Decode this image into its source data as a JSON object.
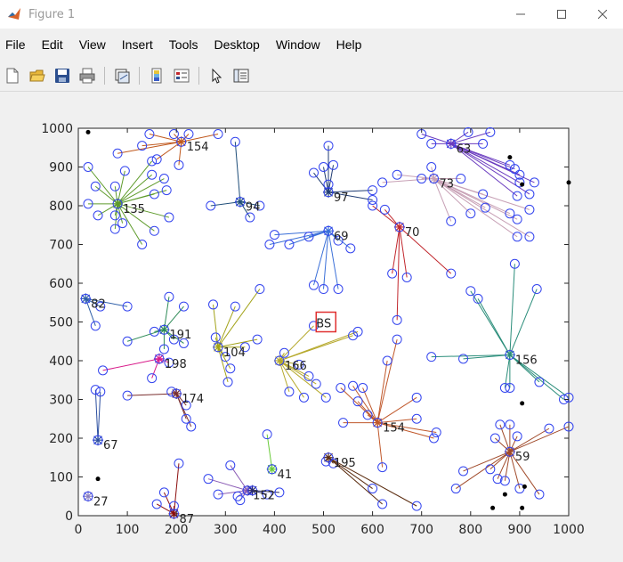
{
  "window": {
    "title": "Figure 1"
  },
  "menu": [
    "File",
    "Edit",
    "View",
    "Insert",
    "Tools",
    "Desktop",
    "Window",
    "Help"
  ],
  "toolbar": [
    "new-file-icon",
    "open-folder-icon",
    "save-icon",
    "print-icon",
    "link-plot-icon",
    "colorbar-icon",
    "legend-icon",
    "pointer-icon",
    "property-editor-icon"
  ],
  "chart_data": {
    "type": "scatter",
    "title": "",
    "xlabel": "",
    "ylabel": "",
    "xlim": [
      0,
      1000
    ],
    "ylim": [
      0,
      1000
    ],
    "xticks": [
      0,
      100,
      200,
      300,
      400,
      500,
      600,
      700,
      800,
      900,
      1000
    ],
    "yticks": [
      0,
      100,
      200,
      300,
      400,
      500,
      600,
      700,
      800,
      900,
      1000
    ],
    "grid": false,
    "base_station": {
      "label": "BS",
      "x": 505,
      "y": 500
    },
    "clusters": [
      {
        "id": "154",
        "x": 210,
        "y": 965,
        "color": "#c0591e",
        "members": [
          [
            80,
            935
          ],
          [
            145,
            985
          ],
          [
            195,
            985
          ],
          [
            225,
            985
          ],
          [
            285,
            985
          ],
          [
            205,
            905
          ],
          [
            160,
            920
          ],
          [
            130,
            955
          ]
        ]
      },
      {
        "id": "135",
        "x": 80,
        "y": 805,
        "color": "#5e9b2b",
        "members": [
          [
            20,
            900
          ],
          [
            35,
            850
          ],
          [
            20,
            805
          ],
          [
            75,
            850
          ],
          [
            95,
            890
          ],
          [
            150,
            915
          ],
          [
            150,
            880
          ],
          [
            175,
            870
          ],
          [
            180,
            840
          ],
          [
            155,
            830
          ],
          [
            185,
            770
          ],
          [
            155,
            735
          ],
          [
            130,
            700
          ],
          [
            75,
            740
          ],
          [
            75,
            775
          ],
          [
            40,
            775
          ],
          [
            90,
            755
          ]
        ]
      },
      {
        "id": "94",
        "x": 330,
        "y": 810,
        "color": "#1f4e79",
        "members": [
          [
            320,
            965
          ],
          [
            270,
            800
          ],
          [
            370,
            800
          ],
          [
            350,
            770
          ]
        ]
      },
      {
        "id": "97",
        "x": 510,
        "y": 835,
        "color": "#1f3b73",
        "members": [
          [
            480,
            885
          ],
          [
            500,
            900
          ],
          [
            510,
            955
          ],
          [
            520,
            905
          ],
          [
            600,
            840
          ],
          [
            600,
            815
          ],
          [
            510,
            855
          ]
        ]
      },
      {
        "id": "69",
        "x": 510,
        "y": 735,
        "color": "#3a6fd8",
        "members": [
          [
            400,
            725
          ],
          [
            390,
            700
          ],
          [
            430,
            700
          ],
          [
            470,
            720
          ],
          [
            530,
            710
          ],
          [
            555,
            690
          ],
          [
            480,
            595
          ],
          [
            500,
            585
          ],
          [
            530,
            585
          ]
        ]
      },
      {
        "id": "70",
        "x": 655,
        "y": 745,
        "color": "#c1272d",
        "members": [
          [
            600,
            800
          ],
          [
            625,
            790
          ],
          [
            640,
            625
          ],
          [
            670,
            615
          ],
          [
            650,
            505
          ],
          [
            760,
            625
          ]
        ]
      },
      {
        "id": "63",
        "x": 760,
        "y": 960,
        "color": "#6a3bbf",
        "members": [
          [
            700,
            985
          ],
          [
            720,
            960
          ],
          [
            795,
            990
          ],
          [
            840,
            990
          ],
          [
            825,
            960
          ],
          [
            880,
            905
          ],
          [
            890,
            895
          ],
          [
            900,
            880
          ],
          [
            900,
            860
          ],
          [
            920,
            830
          ],
          [
            930,
            860
          ],
          [
            895,
            825
          ]
        ]
      },
      {
        "id": "73",
        "x": 725,
        "y": 870,
        "color": "#c7a0b5",
        "members": [
          [
            700,
            870
          ],
          [
            720,
            900
          ],
          [
            780,
            870
          ],
          [
            800,
            780
          ],
          [
            825,
            830
          ],
          [
            830,
            795
          ],
          [
            880,
            780
          ],
          [
            895,
            765
          ],
          [
            895,
            720
          ],
          [
            920,
            720
          ],
          [
            920,
            790
          ],
          [
            760,
            760
          ],
          [
            620,
            860
          ],
          [
            650,
            880
          ]
        ]
      },
      {
        "id": "82",
        "x": 15,
        "y": 560,
        "color": "#2f5fa8",
        "members": [
          [
            45,
            540
          ],
          [
            35,
            490
          ],
          [
            100,
            540
          ]
        ]
      },
      {
        "id": "191",
        "x": 175,
        "y": 480,
        "color": "#2e8b57",
        "members": [
          [
            185,
            565
          ],
          [
            215,
            540
          ],
          [
            155,
            475
          ],
          [
            195,
            455
          ],
          [
            100,
            450
          ],
          [
            175,
            430
          ],
          [
            215,
            445
          ]
        ]
      },
      {
        "id": "104",
        "x": 285,
        "y": 435,
        "color": "#a3a31a",
        "members": [
          [
            275,
            545
          ],
          [
            320,
            540
          ],
          [
            280,
            460
          ],
          [
            340,
            435
          ],
          [
            365,
            455
          ],
          [
            300,
            410
          ],
          [
            310,
            380
          ],
          [
            305,
            345
          ],
          [
            370,
            585
          ]
        ]
      },
      {
        "id": "166",
        "x": 410,
        "y": 400,
        "color": "#b6a92d",
        "members": [
          [
            420,
            420
          ],
          [
            480,
            490
          ],
          [
            450,
            390
          ],
          [
            470,
            360
          ],
          [
            485,
            340
          ],
          [
            430,
            320
          ],
          [
            460,
            305
          ],
          [
            505,
            305
          ],
          [
            560,
            465
          ],
          [
            570,
            475
          ]
        ]
      },
      {
        "id": "198",
        "x": 165,
        "y": 405,
        "color": "#d81b8a",
        "members": [
          [
            50,
            375
          ],
          [
            185,
            395
          ],
          [
            150,
            355
          ]
        ]
      },
      {
        "id": "174",
        "x": 200,
        "y": 315,
        "color": "#7a2f2f",
        "members": [
          [
            100,
            310
          ],
          [
            190,
            320
          ],
          [
            220,
            285
          ],
          [
            220,
            250
          ],
          [
            230,
            230
          ]
        ]
      },
      {
        "id": "67",
        "x": 40,
        "y": 195,
        "color": "#2c4fa0",
        "members": [
          [
            35,
            325
          ],
          [
            45,
            320
          ]
        ]
      },
      {
        "id": "154b",
        "x": 610,
        "y": 240,
        "color": "#c0582b",
        "members": [
          [
            580,
            330
          ],
          [
            630,
            400
          ],
          [
            650,
            455
          ],
          [
            690,
            305
          ],
          [
            690,
            250
          ],
          [
            730,
            215
          ],
          [
            725,
            200
          ],
          [
            560,
            335
          ],
          [
            535,
            330
          ],
          [
            570,
            295
          ],
          [
            590,
            260
          ],
          [
            540,
            240
          ],
          [
            620,
            125
          ]
        ]
      },
      {
        "id": "156",
        "x": 880,
        "y": 415,
        "color": "#2a8d7a",
        "members": [
          [
            890,
            650
          ],
          [
            935,
            585
          ],
          [
            800,
            580
          ],
          [
            815,
            560
          ],
          [
            785,
            405
          ],
          [
            720,
            410
          ],
          [
            870,
            330
          ],
          [
            880,
            330
          ],
          [
            940,
            345
          ],
          [
            990,
            300
          ],
          [
            1000,
            305
          ]
        ]
      },
      {
        "id": "59",
        "x": 880,
        "y": 165,
        "color": "#a04a2a",
        "members": [
          [
            860,
            235
          ],
          [
            880,
            235
          ],
          [
            895,
            205
          ],
          [
            960,
            225
          ],
          [
            1000,
            230
          ],
          [
            840,
            120
          ],
          [
            855,
            95
          ],
          [
            870,
            90
          ],
          [
            900,
            70
          ],
          [
            940,
            55
          ],
          [
            850,
            200
          ],
          [
            785,
            115
          ],
          [
            770,
            70
          ]
        ]
      },
      {
        "id": "195",
        "x": 510,
        "y": 150,
        "color": "#5b2c0f",
        "members": [
          [
            505,
            140
          ],
          [
            520,
            135
          ],
          [
            600,
            70
          ],
          [
            620,
            30
          ],
          [
            690,
            25
          ]
        ]
      },
      {
        "id": "41",
        "x": 395,
        "y": 120,
        "color": "#6acb3a",
        "members": [
          [
            385,
            210
          ]
        ]
      },
      {
        "id": "152",
        "x": 345,
        "y": 65,
        "color": "#8a5bb5",
        "members": [
          [
            310,
            130
          ],
          [
            325,
            50
          ],
          [
            330,
            40
          ],
          [
            265,
            95
          ],
          [
            285,
            55
          ]
        ]
      },
      {
        "id": "52",
        "x": 355,
        "y": 65,
        "color": "#2a2a6a",
        "members": [
          [
            410,
            60
          ],
          [
            385,
            55
          ]
        ]
      },
      {
        "id": "87",
        "x": 195,
        "y": 5,
        "color": "#8b0d0d",
        "members": [
          [
            205,
            135
          ],
          [
            175,
            60
          ],
          [
            160,
            30
          ],
          [
            195,
            25
          ]
        ]
      },
      {
        "id": "27",
        "x": 20,
        "y": 50,
        "color": "#8a7fc0",
        "members": []
      }
    ],
    "dead_nodes": [
      [
        20,
        990
      ],
      [
        40,
        95
      ],
      [
        880,
        925
      ],
      [
        905,
        855
      ],
      [
        1000,
        860
      ],
      [
        845,
        20
      ],
      [
        870,
        55
      ],
      [
        905,
        20
      ],
      [
        910,
        75
      ],
      [
        905,
        290
      ]
    ],
    "node_labels": [
      {
        "text": "154",
        "x": 210,
        "y": 965
      },
      {
        "text": "135",
        "x": 80,
        "y": 805
      },
      {
        "text": "94",
        "x": 330,
        "y": 810
      },
      {
        "text": "97",
        "x": 510,
        "y": 835
      },
      {
        "text": "69",
        "x": 510,
        "y": 735
      },
      {
        "text": "70",
        "x": 655,
        "y": 745
      },
      {
        "text": "63",
        "x": 760,
        "y": 960
      },
      {
        "text": "73",
        "x": 725,
        "y": 870
      },
      {
        "text": "82",
        "x": 15,
        "y": 560
      },
      {
        "text": "191",
        "x": 175,
        "y": 480
      },
      {
        "text": "104",
        "x": 285,
        "y": 435
      },
      {
        "text": "166",
        "x": 410,
        "y": 400
      },
      {
        "text": "198",
        "x": 165,
        "y": 405
      },
      {
        "text": "174",
        "x": 200,
        "y": 315
      },
      {
        "text": "67",
        "x": 40,
        "y": 195
      },
      {
        "text": "154",
        "x": 610,
        "y": 240
      },
      {
        "text": "156",
        "x": 880,
        "y": 415
      },
      {
        "text": "59",
        "x": 880,
        "y": 165
      },
      {
        "text": "195",
        "x": 510,
        "y": 150
      },
      {
        "text": "41",
        "x": 395,
        "y": 120
      },
      {
        "text": "152",
        "x": 345,
        "y": 65
      },
      {
        "text": "87",
        "x": 195,
        "y": 5
      },
      {
        "text": "27",
        "x": 20,
        "y": 50
      }
    ]
  }
}
